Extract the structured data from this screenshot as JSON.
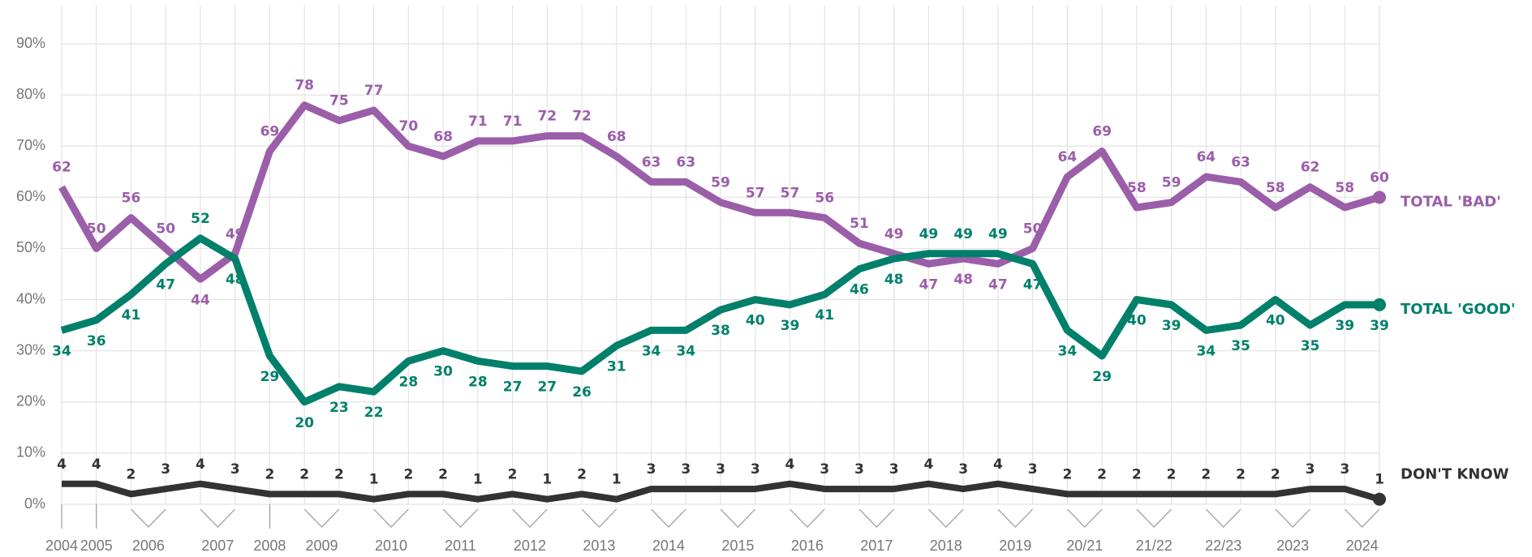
{
  "chart_data": {
    "type": "line",
    "categories": [
      "2004",
      "2005",
      "2006",
      null,
      "2007",
      null,
      "2008",
      "2009",
      null,
      "2010",
      null,
      "2011",
      null,
      "2012",
      null,
      "2013",
      null,
      "2014",
      null,
      "2015",
      null,
      "2016",
      null,
      "2017",
      null,
      "2018",
      null,
      "2019",
      null,
      "20/21",
      null,
      "21/22",
      null,
      "22/23",
      null,
      "2023",
      null,
      "2024",
      null
    ],
    "series": [
      {
        "name": "TOTAL 'BAD'",
        "color": "#9b5ea9",
        "values": [
          62,
          50,
          56,
          50,
          44,
          49,
          69,
          78,
          75,
          77,
          70,
          68,
          71,
          71,
          72,
          72,
          68,
          63,
          63,
          59,
          57,
          57,
          56,
          51,
          49,
          47,
          48,
          47,
          50,
          64,
          69,
          58,
          59,
          64,
          63,
          58,
          62,
          58,
          60
        ]
      },
      {
        "name": "TOTAL 'GOOD'",
        "color": "#00806b",
        "values": [
          34,
          36,
          41,
          47,
          52,
          48,
          29,
          20,
          23,
          22,
          28,
          30,
          28,
          27,
          27,
          26,
          31,
          34,
          34,
          38,
          40,
          39,
          41,
          46,
          48,
          49,
          49,
          49,
          47,
          34,
          29,
          40,
          39,
          34,
          35,
          40,
          35,
          39,
          39
        ]
      },
      {
        "name": "DON'T KNOW",
        "color": "#333333",
        "values": [
          4,
          4,
          2,
          3,
          4,
          3,
          2,
          2,
          2,
          1,
          2,
          2,
          1,
          2,
          1,
          2,
          1,
          3,
          3,
          3,
          3,
          4,
          3,
          3,
          3,
          4,
          3,
          4,
          3,
          2,
          2,
          2,
          2,
          2,
          2,
          2,
          3,
          3,
          1
        ]
      }
    ],
    "ylim": [
      0,
      90
    ],
    "yticks": [
      {
        "value": 0,
        "label": "0%"
      },
      {
        "value": 10,
        "label": "10%"
      },
      {
        "value": 20,
        "label": "20%"
      },
      {
        "value": 30,
        "label": "30%"
      },
      {
        "value": 40,
        "label": "40%"
      },
      {
        "value": 50,
        "label": "50%"
      },
      {
        "value": 60,
        "label": "60%"
      },
      {
        "value": 70,
        "label": "70%"
      },
      {
        "value": 80,
        "label": "80%"
      },
      {
        "value": 90,
        "label": "90%"
      }
    ],
    "grid": true
  }
}
